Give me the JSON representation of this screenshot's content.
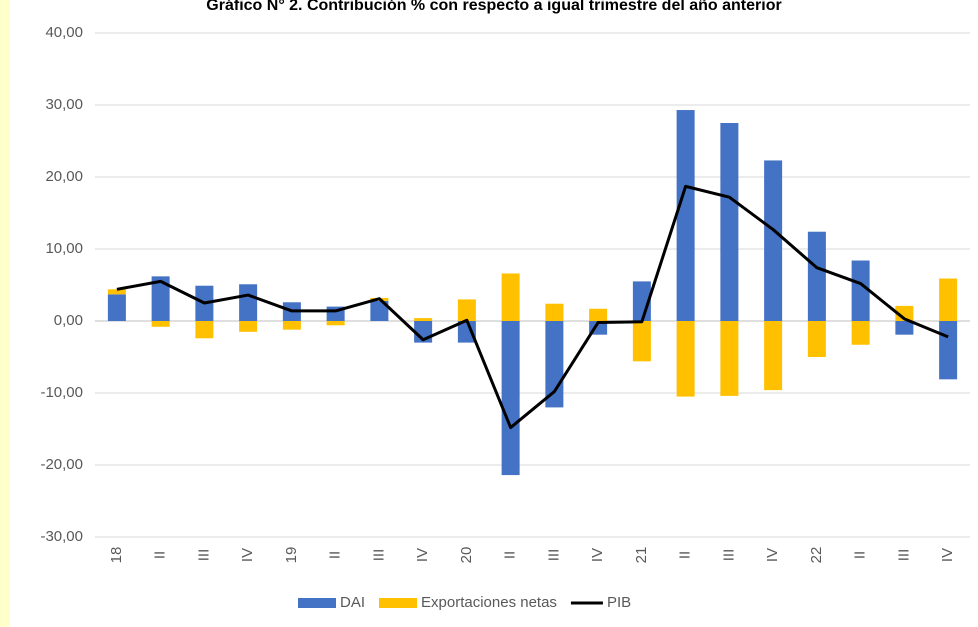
{
  "chart_data": {
    "type": "bar_line",
    "title": "Gráfico N° 2. Contribución % con respecto a igual trimestre del año anterior",
    "categories": [
      "18",
      "II",
      "III",
      "IV",
      "19",
      "II",
      "III",
      "IV",
      "20",
      "II",
      "III",
      "IV",
      "21",
      "II",
      "III",
      "IV",
      "22",
      "II",
      "III",
      "IV"
    ],
    "series": [
      {
        "name": "DAI",
        "color": "#4472c4",
        "kind": "bar",
        "values": [
          3.7,
          6.2,
          4.9,
          5.1,
          2.6,
          2.0,
          2.8,
          -3.0,
          -3.0,
          -21.4,
          -12.0,
          -1.9,
          5.5,
          29.3,
          27.5,
          22.3,
          12.4,
          8.4,
          -1.9,
          -8.1
        ]
      },
      {
        "name": "Exportaciones netas",
        "color": "#ffc000",
        "kind": "bar",
        "values": [
          0.7,
          -0.8,
          -2.4,
          -1.5,
          -1.2,
          -0.6,
          0.4,
          0.4,
          3.0,
          6.6,
          2.4,
          1.7,
          -5.6,
          -10.5,
          -10.4,
          -9.6,
          -5.0,
          -3.3,
          2.1,
          5.9
        ]
      },
      {
        "name": "PIB",
        "color": "#000000",
        "kind": "line",
        "values": [
          4.4,
          5.5,
          2.5,
          3.6,
          1.4,
          1.4,
          3.1,
          -2.6,
          0.1,
          -14.8,
          -9.8,
          -0.2,
          -0.1,
          18.7,
          17.2,
          12.7,
          7.4,
          5.2,
          0.3,
          -2.2
        ]
      }
    ],
    "ylim": [
      -30,
      40
    ],
    "yticks": [
      {
        "value": -30,
        "label": "-30,00"
      },
      {
        "value": -20,
        "label": "-20,00"
      },
      {
        "value": -10,
        "label": "-10,00"
      },
      {
        "value": 0,
        "label": "0,00"
      },
      {
        "value": 10,
        "label": "10,00"
      },
      {
        "value": 20,
        "label": "20,00"
      },
      {
        "value": 30,
        "label": "30,00"
      },
      {
        "value": 40,
        "label": "40,00"
      }
    ],
    "grid": true,
    "legend": "bottom"
  }
}
